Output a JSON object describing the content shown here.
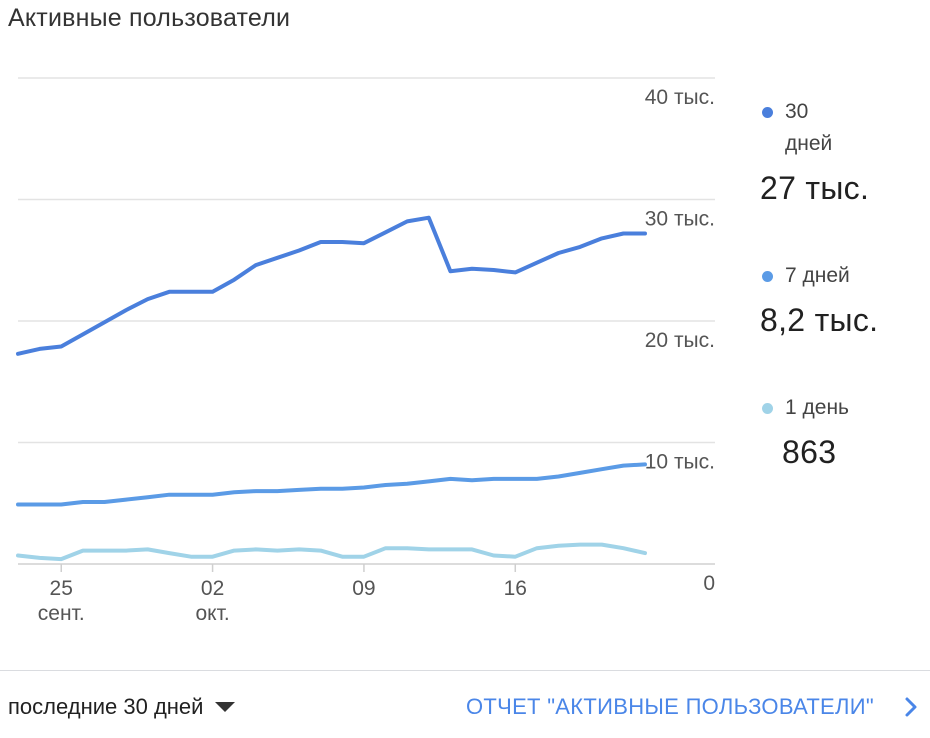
{
  "card": {
    "title": "Активные пользователи"
  },
  "chart_data": {
    "type": "line",
    "y_axis": {
      "ticks": [
        "0",
        "10 тыс.",
        "20 тыс.",
        "30 тыс.",
        "40 тыс."
      ],
      "tick_values": [
        0,
        10000,
        20000,
        30000,
        40000
      ],
      "ylim": [
        0,
        40000
      ],
      "side": "right",
      "grid": true
    },
    "x_axis": {
      "ticks": [
        {
          "day_index": 2,
          "day": "25",
          "month": "сент."
        },
        {
          "day_index": 9,
          "day": "02",
          "month": "окт."
        },
        {
          "day_index": 16,
          "day": "09",
          "month": ""
        },
        {
          "day_index": 23,
          "day": "16",
          "month": ""
        }
      ]
    },
    "x_day_range": [
      0,
      29
    ],
    "series": [
      {
        "name": "30 дней",
        "color": "#4a7fdc",
        "values": [
          17300,
          17700,
          17900,
          18900,
          19900,
          20900,
          21800,
          22400,
          22400,
          22400,
          23400,
          24600,
          25200,
          25800,
          26500,
          26500,
          26400,
          27300,
          28200,
          28500,
          24100,
          24300,
          24200,
          24000,
          24800,
          25600,
          26100,
          26800,
          27200,
          27200
        ]
      },
      {
        "name": "7 дней",
        "color": "#5b9be6",
        "values": [
          4900,
          4900,
          4900,
          5100,
          5100,
          5300,
          5500,
          5700,
          5700,
          5700,
          5900,
          6000,
          6000,
          6100,
          6200,
          6200,
          6300,
          6500,
          6600,
          6800,
          7000,
          6900,
          7000,
          7000,
          7000,
          7200,
          7500,
          7800,
          8100,
          8200
        ]
      },
      {
        "name": "1 день",
        "color": "#a0d3e8",
        "values": [
          700,
          500,
          400,
          1100,
          1100,
          1100,
          1200,
          900,
          600,
          600,
          1100,
          1200,
          1100,
          1200,
          1100,
          600,
          600,
          1300,
          1300,
          1200,
          1200,
          1200,
          700,
          600,
          1300,
          1500,
          1600,
          1600,
          1300,
          900
        ]
      }
    ]
  },
  "legend": [
    {
      "label": "30 дней",
      "value": "27 тыс.",
      "color": "#4a7fdc"
    },
    {
      "label": "7 дней",
      "value": "8,2 тыс.",
      "color": "#5b9be6"
    },
    {
      "label": "1 день",
      "value": "863",
      "color": "#a0d3e8"
    }
  ],
  "footer": {
    "period_label": "последние 30 дней",
    "report_link": "ОТЧЕТ \"АКТИВНЫЕ ПОЛЬЗОВАТЕЛИ\""
  }
}
